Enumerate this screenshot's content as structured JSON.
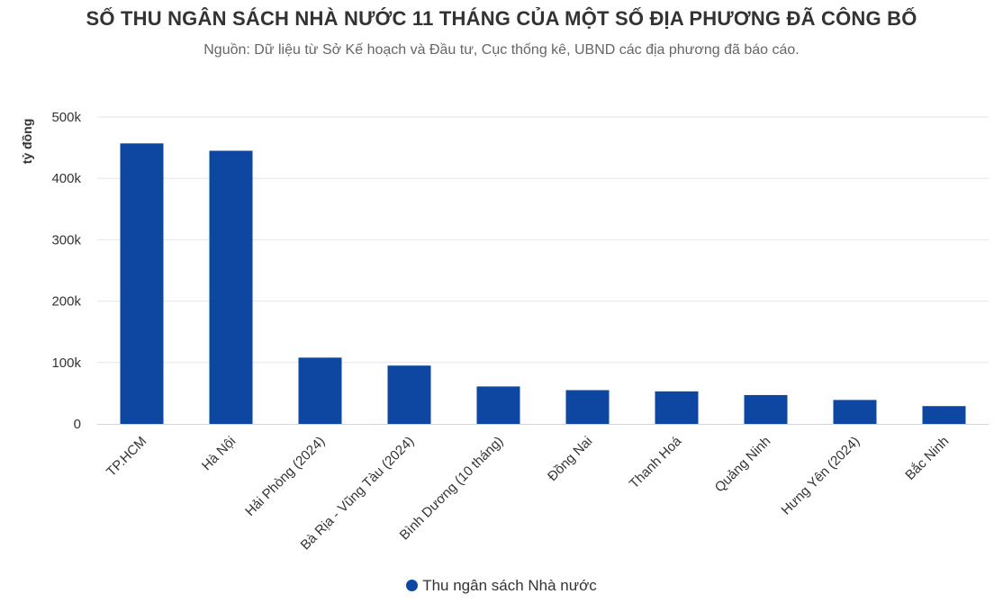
{
  "chart_data": {
    "type": "bar",
    "title": "SỐ THU NGÂN SÁCH NHÀ NƯỚC 11 THÁNG CỦA MỘT SỐ ĐỊA PHƯƠNG ĐÃ CÔNG BỐ",
    "subtitle": "Nguồn: Dữ liệu từ Sở Kế hoạch và Đầu tư, Cục thống kê, UBND các địa phương đã báo cáo.",
    "xlabel": "",
    "ylabel": "tỷ đồng",
    "ylim": [
      0,
      500000
    ],
    "yticks": [
      0,
      100000,
      200000,
      300000,
      400000,
      500000
    ],
    "ytick_labels": [
      "0",
      "100k",
      "200k",
      "300k",
      "400k",
      "500k"
    ],
    "grid": true,
    "legend_position": "bottom-center",
    "categories": [
      "TP.HCM",
      "Hà Nội",
      "Hải Phòng (2024)",
      "Bà Rịa - Vũng Tàu (2024)",
      "Bình Dương (10 tháng)",
      "Đồng Nai",
      "Thanh Hoá",
      "Quảng Ninh",
      "Hưng Yên (2024)",
      "Bắc Ninh"
    ],
    "series": [
      {
        "name": "Thu ngân sách Nhà nước",
        "color": "#0d47a1",
        "values": [
          457000,
          445000,
          108000,
          95000,
          61000,
          55000,
          53000,
          47000,
          39000,
          29000
        ]
      }
    ]
  }
}
